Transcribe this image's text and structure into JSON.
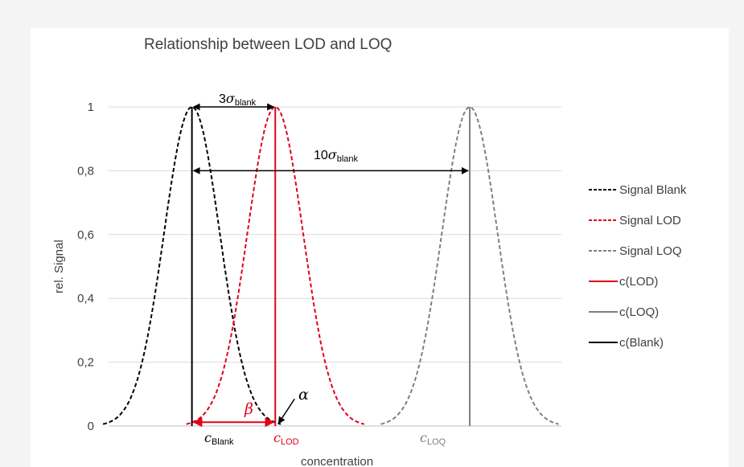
{
  "chart_data": {
    "type": "line",
    "title": "Relationship between LOD and LOQ",
    "xlabel": "concentration",
    "ylabel": "rel. Signal",
    "y_ticks": [
      "0",
      "0,2",
      "0,4",
      "0,6",
      "0,8",
      "1"
    ],
    "ylim": [
      0,
      1
    ],
    "grid": true,
    "legend_position": "right",
    "x_markers": {
      "blank": {
        "symbol": "c",
        "subscript": "Blank"
      },
      "lod": {
        "symbol": "c",
        "subscript": "LOD"
      },
      "loq": {
        "symbol": "c",
        "subscript": "LOQ"
      }
    },
    "annotations": {
      "three_sigma": {
        "prefix": "3",
        "symbol": "σ",
        "subscript": "blank"
      },
      "ten_sigma": {
        "prefix": "10",
        "symbol": "σ",
        "subscript": "blank"
      },
      "beta": "β",
      "alpha": "α"
    },
    "series": [
      {
        "name": "Signal Blank",
        "style": "dashed",
        "color": "#000000",
        "center": 0,
        "peak": 1
      },
      {
        "name": "Signal LOD",
        "style": "dashed",
        "color": "#e2001a",
        "center": 3,
        "peak": 1
      },
      {
        "name": "Signal LOQ",
        "style": "dashed",
        "color": "#808080",
        "center": 10,
        "peak": 1
      },
      {
        "name": "c(LOD)",
        "style": "solid",
        "color": "#e2001a",
        "x": 3
      },
      {
        "name": "c(LOQ)",
        "style": "solid",
        "color": "#808080",
        "x": 10
      },
      {
        "name": "c(Blank)",
        "style": "solid",
        "color": "#000000",
        "x": 0
      }
    ]
  },
  "colors": {
    "grid": "#d9d9d9",
    "text": "#404040",
    "red": "#e2001a",
    "gray": "#808080",
    "black": "#000000"
  }
}
